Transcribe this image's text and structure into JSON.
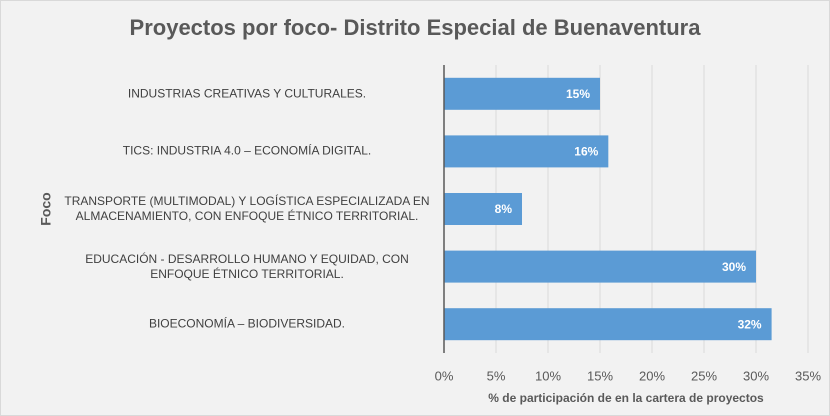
{
  "chart_data": {
    "type": "barh",
    "title": "Proyectos por foco- Distrito Especial de Buenaventura",
    "ylabel": "Foco",
    "xlabel": "% de participación de en la cartera de proyectos",
    "categories": [
      "INDUSTRIAS CREATIVAS Y CULTURALES.",
      "TICS: INDUSTRIA 4.0 – ECONOMÍA DIGITAL.",
      "TRANSPORTE (MULTIMODAL) Y LOGÍSTICA ESPECIALIZADA EN ALMACENAMIENTO, CON ENFOQUE ÉTNICO TERRITORIAL.",
      "EDUCACIÓN - DESARROLLO HUMANO Y EQUIDAD, CON ENFOQUE ÉTNICO TERRITORIAL.",
      "BIOECONOMÍA – BIODIVERSIDAD."
    ],
    "values": [
      15,
      15.8,
      7.5,
      30,
      31.5
    ],
    "value_labels": [
      "15%",
      "16%",
      "8%",
      "30%",
      "32%"
    ],
    "color": "#5b9bd5",
    "xlim": [
      0,
      35
    ],
    "xticks": [
      {
        "value": 0,
        "label": "0%"
      },
      {
        "value": 5,
        "label": "5%"
      },
      {
        "value": 10,
        "label": "10%"
      },
      {
        "value": 15,
        "label": "15%"
      },
      {
        "value": 20,
        "label": "20%"
      },
      {
        "value": 25,
        "label": "25%"
      },
      {
        "value": 30,
        "label": "30%"
      },
      {
        "value": 35,
        "label": "35%"
      }
    ],
    "grid": true
  }
}
